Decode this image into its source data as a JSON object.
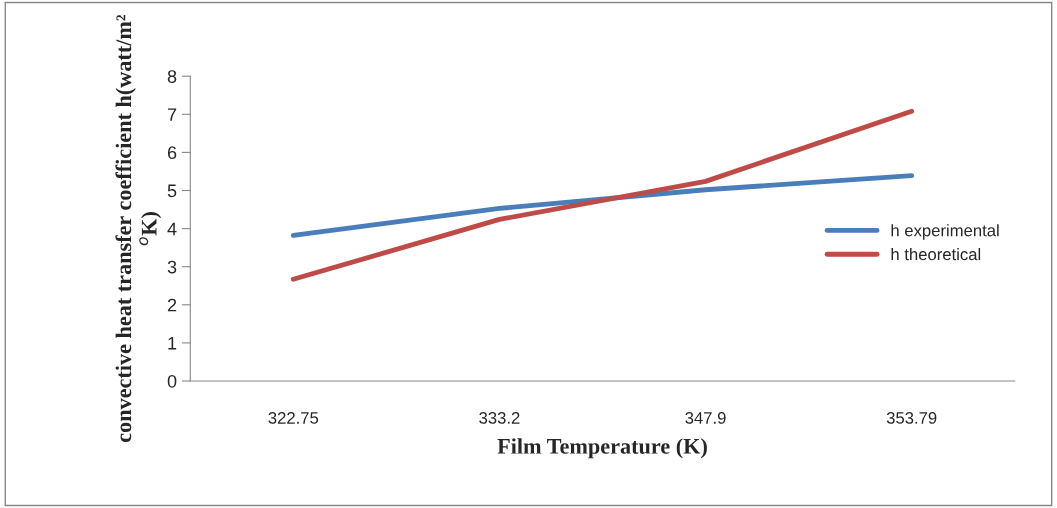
{
  "chart_data": {
    "type": "line",
    "xlabel": "Film Temperature (K)",
    "ylabel": "convective heat transfer coefficient h(watt/m² $^{o}$K)",
    "categories": [
      "322.75",
      "333.2",
      "347.9",
      "353.79"
    ],
    "series": [
      {
        "name": "h experimental",
        "color": "#4a7ebb",
        "values": [
          3.82,
          4.53,
          5.02,
          5.39
        ]
      },
      {
        "name": "h theoretical",
        "color": "#be4b48",
        "values": [
          2.67,
          4.24,
          5.24,
          7.08
        ]
      }
    ],
    "ylim": [
      0,
      8
    ],
    "yticks": [
      0,
      1,
      2,
      3,
      4,
      5,
      6,
      7,
      8
    ],
    "grid": false,
    "legend": "right",
    "marker": "none",
    "line_style": "solid"
  }
}
